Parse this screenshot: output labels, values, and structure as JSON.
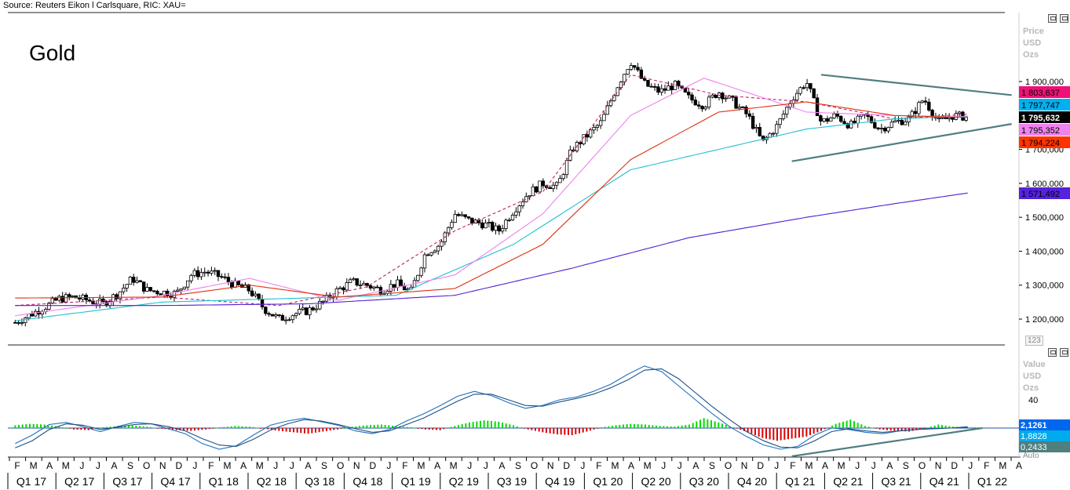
{
  "source": "Source: Reuters Eikon l Carlsquare, RIC: XAU=",
  "title": "Gold",
  "price_axis_header": [
    "Price",
    "USD",
    "Ozs"
  ],
  "indicator_axis_header": [
    "Value",
    "USD",
    "Ozs"
  ],
  "indicator_button": "123",
  "auto_label": "Auto",
  "colors": {
    "background": "#ffffff",
    "candle": "#000000",
    "ma_dashed_short": "#c0206c",
    "ma_pink": "#ee82ee",
    "ma_red": "#e03010",
    "ma_cyan": "#20c0d0",
    "ma_purple": "#5020d0",
    "trendline": "#4f7f7f",
    "hist_pos": "#00dd00",
    "hist_neg": "#dd0000",
    "macd_line": "#1e70c0",
    "signal_line": "#205080"
  },
  "chart_data": [
    {
      "type": "candlestick",
      "title": "Gold",
      "ylabel": "Price USD Ozs",
      "ylim": [
        1150000,
        1990000
      ],
      "yticks": [
        "1 200,000",
        "1 300,000",
        "1 400,000",
        "1 500,000",
        "1 600,000",
        "1 700,000",
        "1 800,000",
        "1 900,000"
      ],
      "ytick_values": [
        1200000,
        1300000,
        1400000,
        1500000,
        1600000,
        1700000,
        1800000,
        1900000
      ],
      "x_months": [
        "F",
        "M",
        "A",
        "M",
        "J",
        "J",
        "A",
        "S",
        "O",
        "N",
        "D",
        "J",
        "F",
        "M",
        "A",
        "M",
        "J",
        "J",
        "A",
        "S",
        "O",
        "N",
        "D",
        "J",
        "F",
        "M",
        "A",
        "M",
        "J",
        "J",
        "A",
        "S",
        "O",
        "N",
        "D",
        "J",
        "F",
        "M",
        "A",
        "M",
        "J",
        "J",
        "A",
        "S",
        "O",
        "N",
        "D",
        "J",
        "F",
        "M",
        "A",
        "M",
        "J",
        "J",
        "A",
        "S",
        "O",
        "N",
        "D",
        "J",
        "F",
        "M",
        "A"
      ],
      "x_quarters": [
        "Q1 17",
        "Q2 17",
        "Q3 17",
        "Q4 17",
        "Q1 18",
        "Q2 18",
        "Q3 18",
        "Q4 18",
        "Q1 19",
        "Q2 19",
        "Q3 19",
        "Q4 19",
        "Q1 20",
        "Q2 20",
        "Q3 20",
        "Q4 20",
        "Q1 21",
        "Q2 21",
        "Q3 21",
        "Q4 21",
        "Q1 22"
      ],
      "price_path": [
        [
          0,
          1190000
        ],
        [
          2,
          1235000
        ],
        [
          3,
          1260000
        ],
        [
          4,
          1265000
        ],
        [
          5,
          1255000
        ],
        [
          6,
          1245000
        ],
        [
          7,
          1275000
        ],
        [
          8,
          1320000
        ],
        [
          9,
          1285000
        ],
        [
          10,
          1280000
        ],
        [
          11,
          1275000
        ],
        [
          12,
          1330000
        ],
        [
          13,
          1340000
        ],
        [
          14,
          1325000
        ],
        [
          15,
          1300000
        ],
        [
          16,
          1285000
        ],
        [
          17,
          1230000
        ],
        [
          18,
          1200000
        ],
        [
          19,
          1215000
        ],
        [
          20,
          1225000
        ],
        [
          21,
          1250000
        ],
        [
          22,
          1285000
        ],
        [
          23,
          1310000
        ],
        [
          24,
          1300000
        ],
        [
          25,
          1285000
        ],
        [
          26,
          1305000
        ],
        [
          27,
          1280000
        ],
        [
          28,
          1395000
        ],
        [
          29,
          1420000
        ],
        [
          30,
          1510000
        ],
        [
          31,
          1490000
        ],
        [
          32,
          1480000
        ],
        [
          33,
          1460000
        ],
        [
          34,
          1520000
        ],
        [
          35,
          1570000
        ],
        [
          36,
          1600000
        ],
        [
          37,
          1590000
        ],
        [
          38,
          1700000
        ],
        [
          39,
          1740000
        ],
        [
          40,
          1780000
        ],
        [
          41,
          1880000
        ],
        [
          42,
          1960000
        ],
        [
          43,
          1890000
        ],
        [
          44,
          1870000
        ],
        [
          45,
          1890000
        ],
        [
          46,
          1850000
        ],
        [
          47,
          1830000
        ],
        [
          48,
          1870000
        ],
        [
          49,
          1840000
        ],
        [
          50,
          1800000
        ],
        [
          51,
          1720000
        ],
        [
          52,
          1770000
        ],
        [
          53,
          1850000
        ],
        [
          54,
          1900000
        ],
        [
          55,
          1780000
        ],
        [
          56,
          1800000
        ],
        [
          57,
          1770000
        ],
        [
          58,
          1800000
        ],
        [
          59,
          1760000
        ],
        [
          60,
          1780000
        ],
        [
          61,
          1790000
        ],
        [
          62,
          1850000
        ],
        [
          63,
          1780000
        ],
        [
          64,
          1800000
        ],
        [
          65,
          1795632
        ]
      ],
      "series": [
        {
          "name": "1 803,637",
          "label_color": "#ee1177",
          "path": [
            [
              0,
              1240000
            ],
            [
              10,
              1265000
            ],
            [
              18,
              1240000
            ],
            [
              24,
              1295000
            ],
            [
              30,
              1460000
            ],
            [
              36,
              1575000
            ],
            [
              42,
              1920000
            ],
            [
              48,
              1860000
            ],
            [
              54,
              1840000
            ],
            [
              60,
              1790000
            ],
            [
              65,
              1803637
            ]
          ]
        },
        {
          "name": "1 797,747",
          "label_color": "#00b0f0",
          "path": [
            [
              0,
              1195000
            ],
            [
              10,
              1250000
            ],
            [
              18,
              1260000
            ],
            [
              26,
              1270000
            ],
            [
              34,
              1420000
            ],
            [
              42,
              1640000
            ],
            [
              48,
              1700000
            ],
            [
              54,
              1760000
            ],
            [
              60,
              1790000
            ],
            [
              65,
              1797747
            ]
          ]
        },
        {
          "name": "1 795,632",
          "label_color": "#000000",
          "path": []
        },
        {
          "name": "1 795,352",
          "label_color": "#ee82ee",
          "path": [
            [
              0,
              1210000
            ],
            [
              10,
              1270000
            ],
            [
              16,
              1320000
            ],
            [
              22,
              1255000
            ],
            [
              30,
              1330000
            ],
            [
              36,
              1510000
            ],
            [
              42,
              1800000
            ],
            [
              47,
              1910000
            ],
            [
              54,
              1810000
            ],
            [
              60,
              1800000
            ],
            [
              65,
              1795352
            ]
          ]
        },
        {
          "name": "1 794,224",
          "label_color": "#ff3300",
          "path": [
            [
              0,
              1262000
            ],
            [
              10,
              1265000
            ],
            [
              16,
              1300000
            ],
            [
              22,
              1265000
            ],
            [
              30,
              1290000
            ],
            [
              36,
              1420000
            ],
            [
              42,
              1670000
            ],
            [
              48,
              1810000
            ],
            [
              54,
              1840000
            ],
            [
              60,
              1800000
            ],
            [
              65,
              1794224
            ]
          ]
        },
        {
          "name": "1 571,492",
          "label_color": "#5522dd",
          "path": [
            [
              0,
              1240000
            ],
            [
              10,
              1240000
            ],
            [
              20,
              1245000
            ],
            [
              30,
              1270000
            ],
            [
              38,
              1350000
            ],
            [
              46,
              1440000
            ],
            [
              54,
              1500000
            ],
            [
              60,
              1540000
            ],
            [
              65,
              1571492
            ]
          ]
        }
      ],
      "trendlines": [
        {
          "from": [
            55,
            1920000
          ],
          "to": [
            68,
            1860000
          ]
        },
        {
          "from": [
            53,
            1665000
          ],
          "to": [
            68,
            1775000
          ]
        }
      ]
    },
    {
      "type": "bar",
      "title": "MACD",
      "ylabel": "Value USD Ozs",
      "yticks": [
        "40"
      ],
      "ytick_values": [
        40
      ],
      "ylim": [
        -55,
        80
      ],
      "values_labels": [
        {
          "name": "2,1261",
          "label_color": "#0066ee"
        },
        {
          "name": "1,8828",
          "label_color": "#00aaee"
        },
        {
          "name": "0,2433",
          "label_color": "#4f7f7f"
        }
      ],
      "histogram": [
        4,
        6,
        5,
        2,
        -2,
        -3,
        1,
        3,
        4,
        2,
        -1,
        -3,
        -4,
        -2,
        1,
        3,
        2,
        -1,
        -4,
        -6,
        -8,
        -5,
        -2,
        2,
        4,
        5,
        3,
        1,
        -2,
        -3,
        3,
        8,
        11,
        9,
        4,
        -2,
        -6,
        -9,
        -10,
        -5,
        1,
        4,
        6,
        5,
        3,
        2,
        5,
        14,
        8,
        1,
        -6,
        -14,
        -18,
        -15,
        -12,
        -4,
        6,
        12,
        3,
        -2,
        -4,
        -5,
        -1,
        5,
        2,
        1
      ],
      "macd_line": [
        -22,
        -10,
        5,
        8,
        2,
        -5,
        2,
        8,
        6,
        -1,
        -8,
        -22,
        -30,
        -25,
        -10,
        4,
        10,
        14,
        9,
        4,
        -4,
        -8,
        -2,
        10,
        20,
        32,
        45,
        52,
        46,
        36,
        28,
        32,
        40,
        44,
        52,
        62,
        76,
        88,
        80,
        60,
        40,
        20,
        2,
        -12,
        -24,
        -30,
        -26,
        -10,
        0,
        -2,
        -6,
        -8,
        -4,
        -2,
        0,
        0,
        2
      ],
      "signal_line": [
        -28,
        -18,
        -2,
        6,
        4,
        -2,
        1,
        5,
        6,
        2,
        -4,
        -15,
        -24,
        -26,
        -16,
        -3,
        6,
        12,
        10,
        5,
        -1,
        -6,
        -4,
        5,
        14,
        26,
        38,
        48,
        48,
        40,
        32,
        31,
        37,
        42,
        48,
        57,
        68,
        82,
        84,
        70,
        50,
        30,
        12,
        -5,
        -18,
        -27,
        -28,
        -18,
        -5,
        -1,
        -4,
        -6,
        -4,
        -2,
        -1,
        0,
        1
      ],
      "trendline": {
        "from": [
          53,
          -40
        ],
        "to": [
          66,
          0
        ]
      }
    }
  ]
}
